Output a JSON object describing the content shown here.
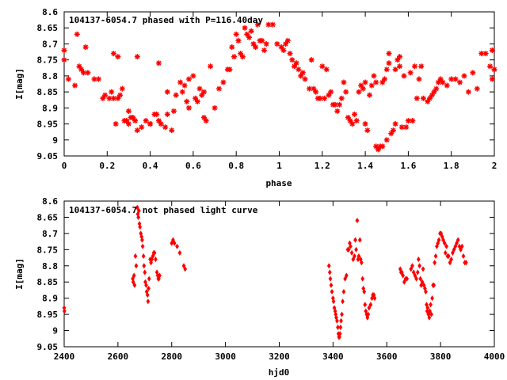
{
  "colors": {
    "points": "#ff0000",
    "axes": "#000000",
    "background": "#ffffff"
  },
  "chart_data": [
    {
      "type": "scatter",
      "title": "104137-6054.7 phased with P=116.40day",
      "xlabel": "phase",
      "ylabel": "I[mag]",
      "xlim": [
        0,
        2
      ],
      "ylim": [
        8.6,
        9.05
      ],
      "y_inverted": true,
      "grid": false,
      "marker": "star",
      "x_ticks": [
        "0",
        "0.2",
        "0.4",
        "0.6",
        "0.8",
        "1",
        "1.2",
        "1.4",
        "1.6",
        "1.8",
        "2"
      ],
      "y_ticks": [
        "8.6",
        "8.65",
        "8.7",
        "8.75",
        "8.8",
        "8.85",
        "8.9",
        "8.95",
        "9",
        "9.05"
      ],
      "points": [
        [
          0.0,
          8.72
        ],
        [
          0.0,
          8.75
        ],
        [
          0.02,
          8.81
        ],
        [
          0.05,
          8.83
        ],
        [
          0.06,
          8.67
        ],
        [
          0.07,
          8.77
        ],
        [
          0.08,
          8.78
        ],
        [
          0.09,
          8.79
        ],
        [
          0.1,
          8.71
        ],
        [
          0.11,
          8.79
        ],
        [
          0.14,
          8.81
        ],
        [
          0.16,
          8.81
        ],
        [
          0.18,
          8.87
        ],
        [
          0.19,
          8.86
        ],
        [
          0.21,
          8.87
        ],
        [
          0.22,
          8.85
        ],
        [
          0.23,
          8.87
        ],
        [
          0.23,
          8.73
        ],
        [
          0.25,
          8.74
        ],
        [
          0.25,
          8.87
        ],
        [
          0.24,
          8.95
        ],
        [
          0.26,
          8.86
        ],
        [
          0.27,
          8.84
        ],
        [
          0.28,
          8.94
        ],
        [
          0.29,
          8.94
        ],
        [
          0.3,
          8.95
        ],
        [
          0.3,
          8.91
        ],
        [
          0.31,
          8.93
        ],
        [
          0.32,
          8.93
        ],
        [
          0.33,
          8.94
        ],
        [
          0.34,
          8.97
        ],
        [
          0.34,
          8.74
        ],
        [
          0.36,
          8.96
        ],
        [
          0.38,
          8.94
        ],
        [
          0.4,
          8.95
        ],
        [
          0.4,
          8.95
        ],
        [
          0.42,
          8.92
        ],
        [
          0.43,
          8.92
        ],
        [
          0.44,
          8.94
        ],
        [
          0.44,
          8.76
        ],
        [
          0.45,
          8.95
        ],
        [
          0.47,
          8.96
        ],
        [
          0.48,
          8.92
        ],
        [
          0.48,
          8.85
        ],
        [
          0.5,
          8.97
        ],
        [
          0.51,
          8.91
        ],
        [
          0.52,
          8.86
        ],
        [
          0.54,
          8.82
        ],
        [
          0.55,
          8.85
        ],
        [
          0.56,
          8.83
        ],
        [
          0.57,
          8.88
        ],
        [
          0.58,
          8.9
        ],
        [
          0.58,
          8.81
        ],
        [
          0.6,
          8.8
        ],
        [
          0.61,
          8.87
        ],
        [
          0.62,
          8.88
        ],
        [
          0.63,
          8.84
        ],
        [
          0.64,
          8.86
        ],
        [
          0.65,
          8.85
        ],
        [
          0.65,
          8.93
        ],
        [
          0.66,
          8.94
        ],
        [
          0.68,
          8.77
        ],
        [
          0.7,
          8.9
        ],
        [
          0.72,
          8.84
        ],
        [
          0.74,
          8.82
        ],
        [
          0.76,
          8.78
        ],
        [
          0.77,
          8.78
        ],
        [
          0.78,
          8.71
        ],
        [
          0.79,
          8.74
        ],
        [
          0.8,
          8.67
        ],
        [
          0.81,
          8.69
        ],
        [
          0.82,
          8.73
        ],
        [
          0.83,
          8.74
        ],
        [
          0.84,
          8.65
        ],
        [
          0.85,
          8.67
        ],
        [
          0.86,
          8.68
        ],
        [
          0.87,
          8.66
        ],
        [
          0.88,
          8.7
        ],
        [
          0.89,
          8.71
        ],
        [
          0.9,
          8.64
        ],
        [
          0.91,
          8.69
        ],
        [
          0.92,
          8.69
        ],
        [
          0.93,
          8.72
        ],
        [
          0.94,
          8.7
        ],
        [
          0.95,
          8.64
        ],
        [
          0.97,
          8.64
        ],
        [
          0.99,
          8.7
        ],
        [
          1.01,
          8.71
        ],
        [
          1.02,
          8.72
        ],
        [
          1.03,
          8.7
        ],
        [
          1.04,
          8.69
        ],
        [
          1.05,
          8.73
        ],
        [
          1.06,
          8.75
        ],
        [
          1.07,
          8.77
        ],
        [
          1.08,
          8.76
        ],
        [
          1.09,
          8.78
        ],
        [
          1.1,
          8.8
        ],
        [
          1.11,
          8.79
        ],
        [
          1.12,
          8.81
        ],
        [
          1.14,
          8.84
        ],
        [
          1.15,
          8.75
        ],
        [
          1.16,
          8.84
        ],
        [
          1.17,
          8.85
        ],
        [
          1.18,
          8.87
        ],
        [
          1.19,
          8.87
        ],
        [
          1.2,
          8.77
        ],
        [
          1.21,
          8.87
        ],
        [
          1.22,
          8.78
        ],
        [
          1.23,
          8.86
        ],
        [
          1.24,
          8.85
        ],
        [
          1.25,
          8.89
        ],
        [
          1.26,
          8.89
        ],
        [
          1.27,
          8.91
        ],
        [
          1.28,
          8.89
        ],
        [
          1.29,
          8.87
        ],
        [
          1.3,
          8.82
        ],
        [
          1.31,
          8.85
        ],
        [
          1.32,
          8.93
        ],
        [
          1.33,
          8.94
        ],
        [
          1.34,
          8.95
        ],
        [
          1.35,
          8.92
        ],
        [
          1.36,
          8.94
        ],
        [
          1.37,
          8.85
        ],
        [
          1.38,
          8.83
        ],
        [
          1.39,
          8.84
        ],
        [
          1.4,
          8.82
        ],
        [
          1.4,
          8.95
        ],
        [
          1.41,
          8.97
        ],
        [
          1.42,
          8.86
        ],
        [
          1.43,
          8.83
        ],
        [
          1.44,
          8.8
        ],
        [
          1.45,
          8.82
        ],
        [
          1.45,
          9.02
        ],
        [
          1.46,
          9.03
        ],
        [
          1.47,
          9.02
        ],
        [
          1.48,
          8.82
        ],
        [
          1.48,
          9.02
        ],
        [
          1.49,
          8.81
        ],
        [
          1.5,
          9.0
        ],
        [
          1.5,
          8.78
        ],
        [
          1.51,
          8.76
        ],
        [
          1.51,
          8.73
        ],
        [
          1.52,
          8.98
        ],
        [
          1.53,
          8.97
        ],
        [
          1.54,
          8.95
        ],
        [
          1.54,
          8.78
        ],
        [
          1.55,
          8.75
        ],
        [
          1.56,
          8.74
        ],
        [
          1.56,
          8.77
        ],
        [
          1.57,
          8.96
        ],
        [
          1.58,
          8.8
        ],
        [
          1.59,
          8.96
        ],
        [
          1.6,
          8.94
        ],
        [
          1.61,
          8.79
        ],
        [
          1.62,
          8.94
        ],
        [
          1.63,
          8.77
        ],
        [
          1.64,
          8.87
        ],
        [
          1.65,
          8.81
        ],
        [
          1.66,
          8.77
        ],
        [
          1.67,
          8.87
        ],
        [
          1.69,
          8.88
        ],
        [
          1.7,
          8.87
        ],
        [
          1.71,
          8.86
        ],
        [
          1.72,
          8.85
        ],
        [
          1.73,
          8.84
        ],
        [
          1.74,
          8.82
        ],
        [
          1.75,
          8.81
        ],
        [
          1.76,
          8.82
        ],
        [
          1.78,
          8.83
        ],
        [
          1.8,
          8.81
        ],
        [
          1.82,
          8.81
        ],
        [
          1.84,
          8.82
        ],
        [
          1.86,
          8.8
        ],
        [
          1.88,
          8.85
        ],
        [
          1.9,
          8.79
        ],
        [
          1.92,
          8.84
        ],
        [
          1.94,
          8.73
        ],
        [
          1.96,
          8.73
        ],
        [
          1.98,
          8.77
        ],
        [
          1.99,
          8.72
        ],
        [
          2.0,
          8.78
        ],
        [
          2.0,
          8.78
        ],
        [
          1.99,
          8.81
        ]
      ]
    },
    {
      "type": "scatter",
      "title": "104137-6054.7 not phased light curve",
      "xlabel": "hjd0",
      "ylabel": "I[mag]",
      "xlim": [
        2400,
        4000
      ],
      "ylim": [
        8.6,
        9.05
      ],
      "y_inverted": true,
      "grid": false,
      "marker": "diamond",
      "x_ticks": [
        "2400",
        "2600",
        "2800",
        "3000",
        "3200",
        "3400",
        "3600",
        "3800",
        "4000"
      ],
      "y_ticks": [
        "8.6",
        "8.65",
        "8.7",
        "8.75",
        "8.8",
        "8.85",
        "8.9",
        "8.95",
        "9",
        "9.05"
      ],
      "points": [
        [
          2400,
          8.93
        ],
        [
          2401,
          8.94
        ],
        [
          2655,
          8.84
        ],
        [
          2657,
          8.85
        ],
        [
          2660,
          8.83
        ],
        [
          2662,
          8.86
        ],
        [
          2665,
          8.77
        ],
        [
          2668,
          8.8
        ],
        [
          2672,
          8.62
        ],
        [
          2674,
          8.64
        ],
        [
          2676,
          8.65
        ],
        [
          2678,
          8.63
        ],
        [
          2680,
          8.67
        ],
        [
          2682,
          8.68
        ],
        [
          2685,
          8.7
        ],
        [
          2688,
          8.71
        ],
        [
          2690,
          8.72
        ],
        [
          2692,
          8.74
        ],
        [
          2695,
          8.77
        ],
        [
          2697,
          8.8
        ],
        [
          2700,
          8.82
        ],
        [
          2702,
          8.85
        ],
        [
          2705,
          8.86
        ],
        [
          2707,
          8.88
        ],
        [
          2710,
          8.89
        ],
        [
          2712,
          8.91
        ],
        [
          2714,
          8.87
        ],
        [
          2716,
          8.84
        ],
        [
          2720,
          8.78
        ],
        [
          2723,
          8.79
        ],
        [
          2726,
          8.78
        ],
        [
          2730,
          8.77
        ],
        [
          2733,
          8.76
        ],
        [
          2736,
          8.76
        ],
        [
          2740,
          8.78
        ],
        [
          2745,
          8.82
        ],
        [
          2748,
          8.83
        ],
        [
          2750,
          8.84
        ],
        [
          2752,
          8.84
        ],
        [
          2755,
          8.83
        ],
        [
          2800,
          8.73
        ],
        [
          2805,
          8.72
        ],
        [
          2810,
          8.73
        ],
        [
          2820,
          8.74
        ],
        [
          2830,
          8.76
        ],
        [
          2845,
          8.8
        ],
        [
          2850,
          8.81
        ],
        [
          3385,
          8.8
        ],
        [
          3388,
          8.82
        ],
        [
          3390,
          8.84
        ],
        [
          3393,
          8.86
        ],
        [
          3396,
          8.88
        ],
        [
          3400,
          8.9
        ],
        [
          3402,
          8.91
        ],
        [
          3405,
          8.93
        ],
        [
          3408,
          8.94
        ],
        [
          3410,
          8.95
        ],
        [
          3412,
          8.96
        ],
        [
          3415,
          8.97
        ],
        [
          3418,
          8.99
        ],
        [
          3420,
          9.01
        ],
        [
          3422,
          9.02
        ],
        [
          3424,
          9.02
        ],
        [
          3426,
          9.01
        ],
        [
          3428,
          8.99
        ],
        [
          3430,
          8.97
        ],
        [
          3433,
          8.95
        ],
        [
          3436,
          8.91
        ],
        [
          3440,
          8.88
        ],
        [
          3445,
          8.84
        ],
        [
          3450,
          8.83
        ],
        [
          3455,
          8.75
        ],
        [
          3458,
          8.75
        ],
        [
          3462,
          8.73
        ],
        [
          3465,
          8.74
        ],
        [
          3470,
          8.76
        ],
        [
          3475,
          8.78
        ],
        [
          3480,
          8.77
        ],
        [
          3483,
          8.72
        ],
        [
          3486,
          8.75
        ],
        [
          3490,
          8.66
        ],
        [
          3493,
          8.78
        ],
        [
          3496,
          8.77
        ],
        [
          3500,
          8.72
        ],
        [
          3503,
          8.78
        ],
        [
          3506,
          8.79
        ],
        [
          3510,
          8.84
        ],
        [
          3513,
          8.87
        ],
        [
          3516,
          8.88
        ],
        [
          3519,
          8.92
        ],
        [
          3522,
          8.94
        ],
        [
          3525,
          8.95
        ],
        [
          3528,
          8.96
        ],
        [
          3531,
          8.95
        ],
        [
          3534,
          8.93
        ],
        [
          3540,
          8.92
        ],
        [
          3545,
          8.9
        ],
        [
          3548,
          8.89
        ],
        [
          3552,
          8.89
        ],
        [
          3555,
          8.9
        ],
        [
          3650,
          8.81
        ],
        [
          3653,
          8.82
        ],
        [
          3656,
          8.82
        ],
        [
          3660,
          8.83
        ],
        [
          3665,
          8.85
        ],
        [
          3670,
          8.84
        ],
        [
          3675,
          8.84
        ],
        [
          3690,
          8.81
        ],
        [
          3695,
          8.8
        ],
        [
          3700,
          8.82
        ],
        [
          3705,
          8.83
        ],
        [
          3710,
          8.84
        ],
        [
          3715,
          8.82
        ],
        [
          3718,
          8.78
        ],
        [
          3722,
          8.8
        ],
        [
          3725,
          8.84
        ],
        [
          3728,
          8.86
        ],
        [
          3732,
          8.85
        ],
        [
          3735,
          8.81
        ],
        [
          3738,
          8.86
        ],
        [
          3742,
          8.87
        ],
        [
          3745,
          8.88
        ],
        [
          3748,
          8.92
        ],
        [
          3750,
          8.94
        ],
        [
          3752,
          8.93
        ],
        [
          3755,
          8.95
        ],
        [
          3758,
          8.96
        ],
        [
          3760,
          8.94
        ],
        [
          3763,
          8.92
        ],
        [
          3766,
          8.95
        ],
        [
          3769,
          8.9
        ],
        [
          3772,
          8.86
        ],
        [
          3775,
          8.86
        ],
        [
          3778,
          8.79
        ],
        [
          3782,
          8.77
        ],
        [
          3786,
          8.74
        ],
        [
          3790,
          8.73
        ],
        [
          3794,
          8.72
        ],
        [
          3798,
          8.7
        ],
        [
          3802,
          8.7
        ],
        [
          3806,
          8.71
        ],
        [
          3810,
          8.72
        ],
        [
          3815,
          8.73
        ],
        [
          3818,
          8.76
        ],
        [
          3822,
          8.74
        ],
        [
          3826,
          8.77
        ],
        [
          3830,
          8.77
        ],
        [
          3835,
          8.79
        ],
        [
          3840,
          8.78
        ],
        [
          3845,
          8.76
        ],
        [
          3850,
          8.75
        ],
        [
          3855,
          8.74
        ],
        [
          3860,
          8.73
        ],
        [
          3865,
          8.72
        ],
        [
          3870,
          8.74
        ],
        [
          3875,
          8.75
        ],
        [
          3880,
          8.74
        ],
        [
          3885,
          8.77
        ],
        [
          3890,
          8.79
        ],
        [
          3895,
          8.79
        ]
      ]
    }
  ]
}
